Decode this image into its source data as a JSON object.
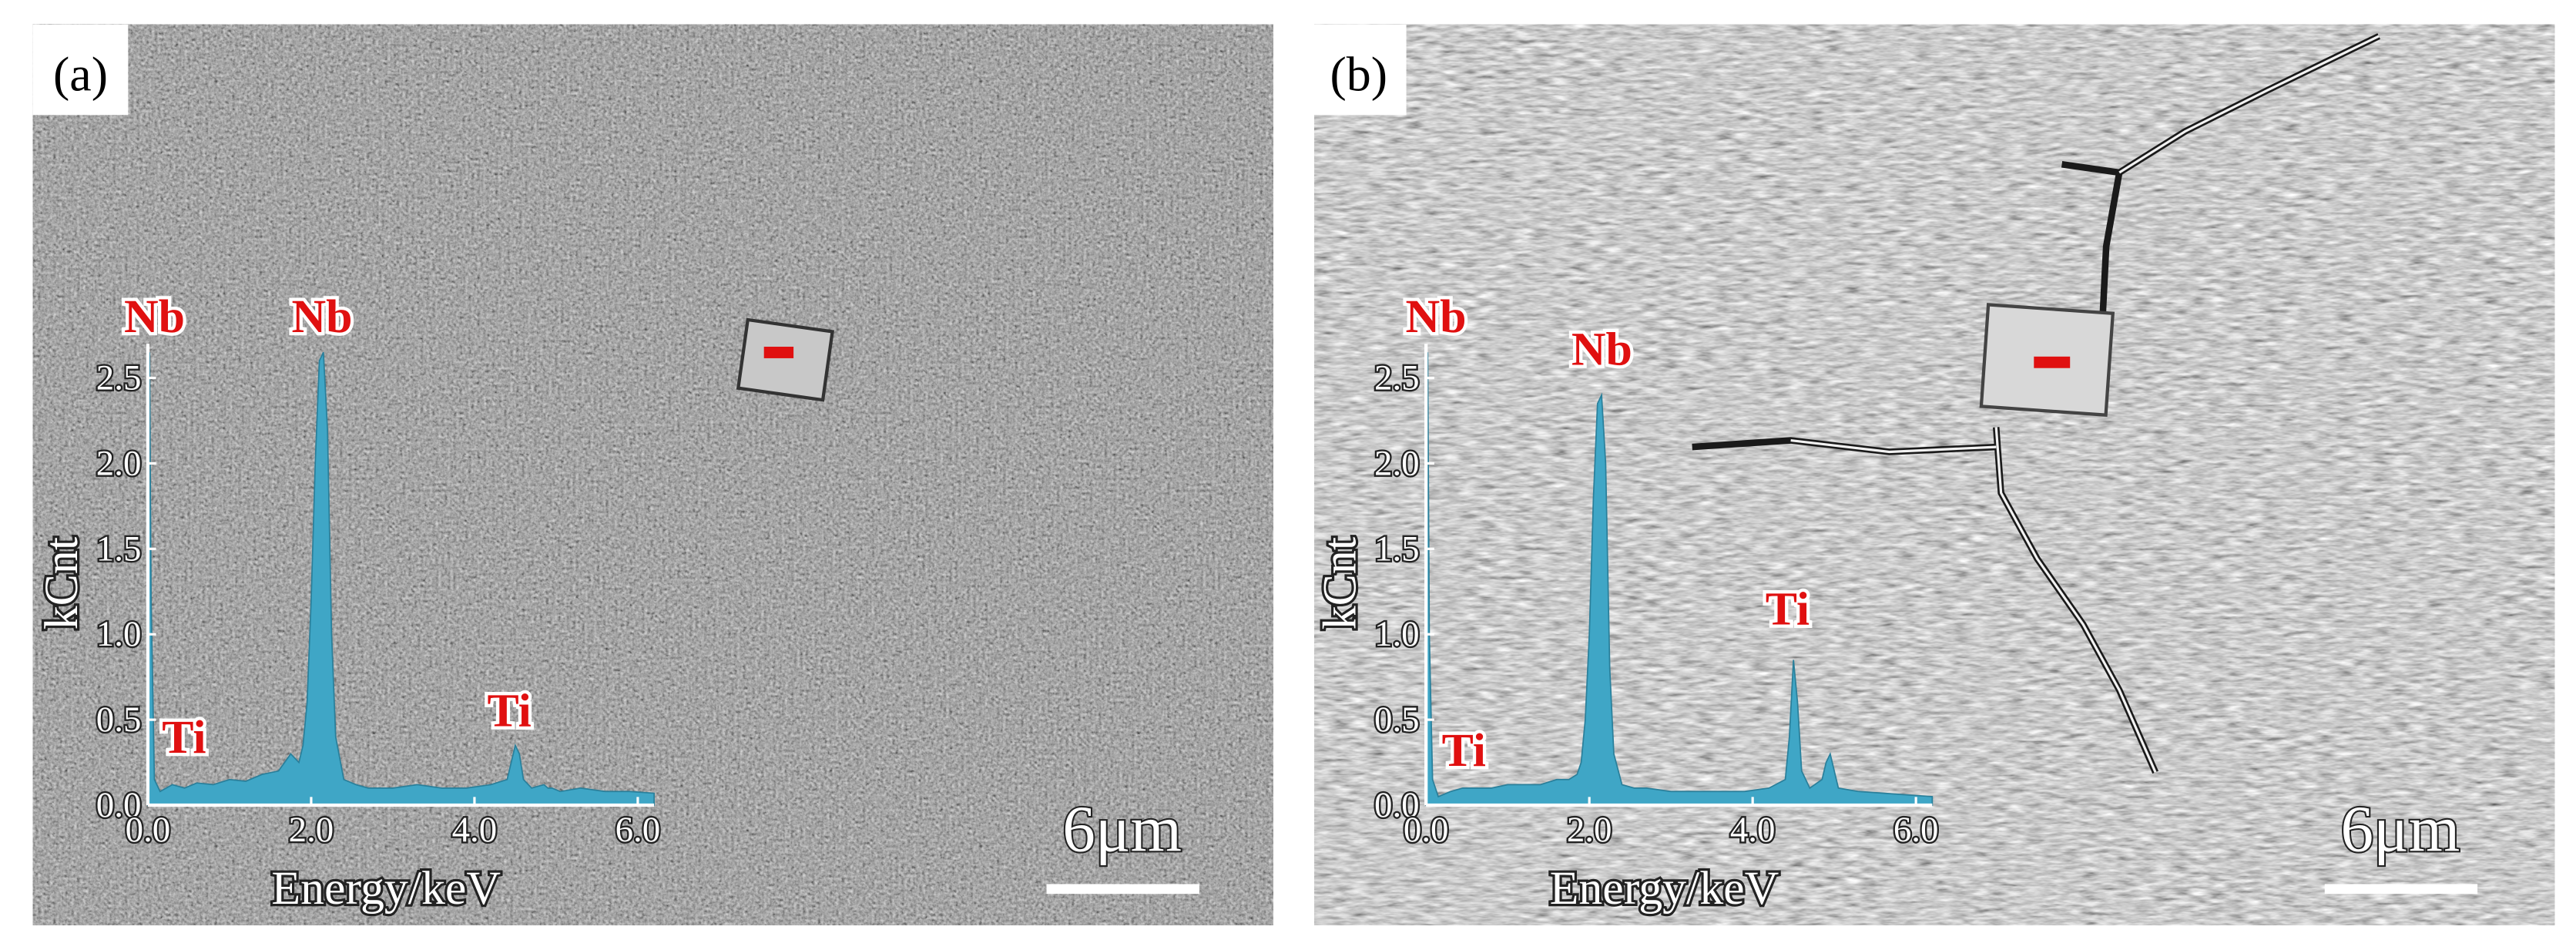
{
  "chart_data": [
    {
      "type": "area",
      "panel_label": "(a)",
      "scale_bar": "6μm",
      "xlabel": "Energy/keV",
      "ylabel": "kCnt",
      "annotations": [
        "Nb",
        "Nb",
        "Ti",
        "Ti"
      ],
      "color": "#3fa6c6",
      "x": [
        0,
        0.02,
        0.04,
        0.08,
        0.15,
        0.3,
        0.45,
        0.6,
        0.8,
        1.0,
        1.2,
        1.4,
        1.6,
        1.75,
        1.85,
        1.9,
        1.95,
        2.0,
        2.05,
        2.1,
        2.15,
        2.2,
        2.25,
        2.3,
        2.4,
        2.55,
        2.7,
        3.0,
        3.3,
        3.6,
        3.9,
        4.2,
        4.4,
        4.45,
        4.5,
        4.55,
        4.6,
        4.7,
        4.85,
        4.9,
        4.95,
        5.05,
        5.3,
        5.6,
        5.9,
        6.2
      ],
      "values": [
        0.1,
        2.65,
        1.2,
        0.15,
        0.08,
        0.12,
        0.1,
        0.13,
        0.12,
        0.15,
        0.14,
        0.18,
        0.2,
        0.3,
        0.25,
        0.35,
        0.6,
        1.2,
        2.0,
        2.6,
        2.65,
        2.2,
        1.0,
        0.4,
        0.15,
        0.12,
        0.1,
        0.1,
        0.12,
        0.1,
        0.1,
        0.12,
        0.15,
        0.25,
        0.35,
        0.3,
        0.15,
        0.1,
        0.12,
        0.1,
        0.1,
        0.08,
        0.1,
        0.08,
        0.08,
        0.07
      ],
      "xlim": [
        0,
        6.2
      ],
      "ylim": [
        0,
        2.7
      ],
      "xticks": [
        {
          "value": 0,
          "label": "0.0"
        },
        {
          "value": 2,
          "label": "2.0"
        },
        {
          "value": 4,
          "label": "4.0"
        },
        {
          "value": 6,
          "label": "6.0"
        }
      ],
      "yticks": [
        {
          "value": 0,
          "label": "0.0"
        },
        0.5,
        {
          "value": 1,
          "label": "1.0"
        },
        1.5,
        {
          "value": 2,
          "label": "2.0"
        },
        2.5
      ]
    },
    {
      "type": "area",
      "panel_label": "(b)",
      "scale_bar": "6μm",
      "xlabel": "Energy/keV",
      "ylabel": "kCnt",
      "annotations": [
        "Nb",
        "Nb",
        "Ti",
        "Ti"
      ],
      "color": "#3fa6c6",
      "x": [
        0,
        0.02,
        0.04,
        0.08,
        0.15,
        0.3,
        0.45,
        0.6,
        0.8,
        1.0,
        1.2,
        1.4,
        1.6,
        1.75,
        1.85,
        1.9,
        1.95,
        2.0,
        2.05,
        2.1,
        2.15,
        2.2,
        2.25,
        2.3,
        2.4,
        2.55,
        2.7,
        3.0,
        3.3,
        3.6,
        3.9,
        4.2,
        4.4,
        4.45,
        4.5,
        4.55,
        4.6,
        4.7,
        4.85,
        4.9,
        4.95,
        5.05,
        5.3,
        5.6,
        5.9,
        6.2
      ],
      "values": [
        0.1,
        2.65,
        1.0,
        0.15,
        0.05,
        0.08,
        0.1,
        0.1,
        0.1,
        0.12,
        0.12,
        0.12,
        0.15,
        0.15,
        0.18,
        0.25,
        0.5,
        1.0,
        1.8,
        2.35,
        2.4,
        2.0,
        0.8,
        0.3,
        0.12,
        0.1,
        0.1,
        0.08,
        0.08,
        0.08,
        0.08,
        0.1,
        0.15,
        0.4,
        0.85,
        0.6,
        0.2,
        0.1,
        0.15,
        0.25,
        0.3,
        0.1,
        0.08,
        0.07,
        0.06,
        0.05
      ],
      "xlim": [
        0,
        6.2
      ],
      "ylim": [
        0,
        2.7
      ],
      "xticks": [
        {
          "value": 0,
          "label": "0.0"
        },
        {
          "value": 2,
          "label": "2.0"
        },
        {
          "value": 4,
          "label": "4.0"
        },
        {
          "value": 6,
          "label": "6.0"
        }
      ],
      "yticks": [
        {
          "value": 0,
          "label": "0.0"
        },
        0.5,
        {
          "value": 1,
          "label": "1.0"
        },
        1.5,
        {
          "value": 2,
          "label": "2.0"
        },
        2.5
      ]
    }
  ]
}
